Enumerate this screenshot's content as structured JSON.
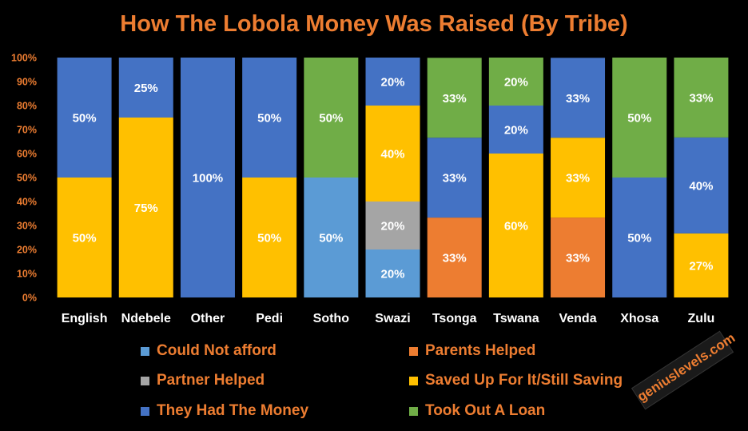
{
  "chart_data": {
    "type": "bar",
    "stacked": true,
    "title": "How The Lobola Money Was Raised (By Tribe)",
    "xlabel": "",
    "ylabel": "",
    "ylim": [
      0,
      100
    ],
    "yticks": [
      "0%",
      "10%",
      "20%",
      "30%",
      "40%",
      "50%",
      "60%",
      "70%",
      "80%",
      "90%",
      "100%"
    ],
    "grid": false,
    "legend_position": "bottom",
    "categories": [
      "English",
      "Ndebele",
      "Other",
      "Pedi",
      "Sotho",
      "Swazi",
      "Tsonga",
      "Tswana",
      "Venda",
      "Xhosa",
      "Zulu"
    ],
    "series": [
      {
        "name": "Could Not afford",
        "color": "#5B9BD5",
        "label_color": "#FFFFFF",
        "values": [
          0,
          0,
          0,
          0,
          50,
          20,
          0,
          0,
          0,
          0,
          0
        ],
        "labels": [
          "",
          "",
          "",
          "",
          "50%",
          "20%",
          "",
          "",
          "",
          "",
          ""
        ]
      },
      {
        "name": "Parents Helped",
        "color": "#ED7D31",
        "label_color": "#FFFFFF",
        "values": [
          0,
          0,
          0,
          0,
          0,
          0,
          33.3,
          0,
          33.3,
          0,
          0
        ],
        "labels": [
          "",
          "",
          "",
          "",
          "",
          "",
          "33%",
          "",
          "33%",
          "",
          ""
        ]
      },
      {
        "name": "Partner Helped",
        "color": "#A5A5A5",
        "label_color": "#FFFFFF",
        "values": [
          0,
          0,
          0,
          0,
          0,
          20,
          0,
          0,
          0,
          0,
          0
        ],
        "labels": [
          "",
          "",
          "",
          "",
          "",
          "20%",
          "",
          "",
          "",
          "",
          ""
        ]
      },
      {
        "name": "Saved Up For It/Still Saving",
        "color": "#FFC000",
        "label_color": "#FFFFFF",
        "values": [
          50,
          75,
          0,
          50,
          0,
          40,
          0,
          60,
          33.3,
          0,
          26.7
        ],
        "labels": [
          "50%",
          "75%",
          "",
          "50%",
          "",
          "40%",
          "",
          "60%",
          "33%",
          "",
          "27%"
        ]
      },
      {
        "name": "They Had The Money",
        "color": "#4472C4",
        "label_color": "#FFFFFF",
        "values": [
          50,
          25,
          100,
          50,
          0,
          20,
          33.3,
          20,
          33.3,
          50,
          40
        ],
        "labels": [
          "50%",
          "25%",
          "100%",
          "50%",
          "",
          "20%",
          "33%",
          "20%",
          "33%",
          "50%",
          "40%"
        ]
      },
      {
        "name": "Took Out A Loan",
        "color": "#70AD47",
        "label_color": "#FFFFFF",
        "values": [
          0,
          0,
          0,
          0,
          50,
          0,
          33.3,
          20,
          0,
          50,
          33.3
        ],
        "labels": [
          "",
          "",
          "",
          "",
          "50%",
          "",
          "33%",
          "20%",
          "",
          "50%",
          "33%"
        ]
      }
    ]
  },
  "watermark": "geniuslevels.com"
}
